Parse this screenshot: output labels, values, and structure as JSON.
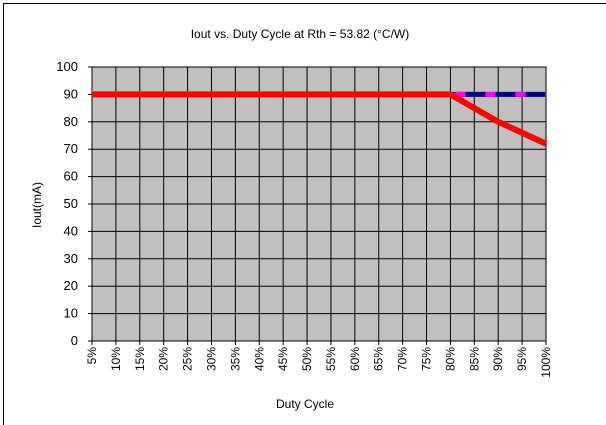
{
  "chart_data": {
    "type": "line",
    "title": "Iout vs. Duty Cycle at Rth = 53.82 (°C/W)",
    "x_label": "Duty Cycle",
    "y_label": "Iout(mA)",
    "categories": [
      "5%",
      "10%",
      "15%",
      "20%",
      "25%",
      "30%",
      "35%",
      "40%",
      "45%",
      "50%",
      "55%",
      "60%",
      "65%",
      "70%",
      "75%",
      "80%",
      "85%",
      "90%",
      "95%",
      "100%"
    ],
    "series": [
      {
        "color": "#ff0000",
        "line_style": "solid",
        "values": [
          90,
          90,
          90,
          90,
          90,
          90,
          90,
          90,
          90,
          90,
          90,
          90,
          90,
          90,
          90,
          90,
          85,
          80,
          76,
          72
        ]
      },
      {
        "color": "#000080",
        "line_style": "solid",
        "values": [
          null,
          null,
          null,
          null,
          null,
          null,
          null,
          null,
          null,
          null,
          null,
          null,
          null,
          null,
          null,
          90,
          90,
          90,
          90,
          90
        ]
      },
      {
        "color": "#ff00ff",
        "line_style": "dashed",
        "values": [
          null,
          null,
          null,
          null,
          null,
          null,
          null,
          null,
          null,
          null,
          null,
          null,
          null,
          null,
          null,
          90,
          90,
          90,
          90,
          90
        ]
      }
    ],
    "ylim": [
      0,
      100
    ],
    "yticks": [
      0,
      10,
      20,
      30,
      40,
      50,
      60,
      70,
      80,
      90,
      100
    ],
    "grid": true,
    "plot_background": "#c0c0c0"
  }
}
